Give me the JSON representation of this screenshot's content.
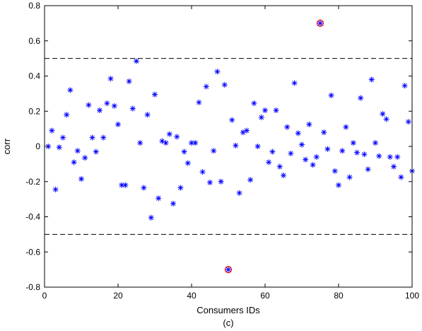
{
  "chart_data": {
    "type": "scatter",
    "title": "",
    "xlabel": "Consumers IDs",
    "ylabel": "corr",
    "caption": "(c)",
    "xlim": [
      0,
      100
    ],
    "ylim": [
      -0.8,
      0.8
    ],
    "xticks": [
      0,
      20,
      40,
      60,
      80,
      100
    ],
    "yticks": [
      -0.8,
      -0.6,
      -0.4,
      -0.2,
      0,
      0.2,
      0.4,
      0.6,
      0.8
    ],
    "threshold_lines": [
      0.5,
      -0.5
    ],
    "marker": "asterisk",
    "marker_color": "#0000ff",
    "highlight_color": "#ff0000",
    "grid": false,
    "highlighted": [
      {
        "x": 50,
        "y": -0.7
      },
      {
        "x": 75,
        "y": 0.7
      }
    ],
    "points": [
      {
        "x": 1,
        "y": 0.0
      },
      {
        "x": 2,
        "y": 0.09
      },
      {
        "x": 3,
        "y": -0.245
      },
      {
        "x": 4,
        "y": -0.005
      },
      {
        "x": 5,
        "y": 0.05
      },
      {
        "x": 6,
        "y": 0.18
      },
      {
        "x": 7,
        "y": 0.32
      },
      {
        "x": 8,
        "y": -0.09
      },
      {
        "x": 9,
        "y": -0.025
      },
      {
        "x": 10,
        "y": -0.185
      },
      {
        "x": 11,
        "y": -0.065
      },
      {
        "x": 12,
        "y": 0.235
      },
      {
        "x": 13,
        "y": 0.05
      },
      {
        "x": 14,
        "y": -0.03
      },
      {
        "x": 15,
        "y": 0.205
      },
      {
        "x": 16,
        "y": 0.05
      },
      {
        "x": 17,
        "y": 0.245
      },
      {
        "x": 18,
        "y": 0.385
      },
      {
        "x": 19,
        "y": 0.23
      },
      {
        "x": 20,
        "y": 0.125
      },
      {
        "x": 21,
        "y": -0.22
      },
      {
        "x": 22,
        "y": -0.22
      },
      {
        "x": 23,
        "y": 0.37
      },
      {
        "x": 24,
        "y": 0.215
      },
      {
        "x": 25,
        "y": 0.485
      },
      {
        "x": 26,
        "y": 0.02
      },
      {
        "x": 27,
        "y": -0.235
      },
      {
        "x": 28,
        "y": 0.18
      },
      {
        "x": 29,
        "y": -0.405
      },
      {
        "x": 30,
        "y": 0.295
      },
      {
        "x": 31,
        "y": -0.295
      },
      {
        "x": 32,
        "y": 0.03
      },
      {
        "x": 33,
        "y": 0.02
      },
      {
        "x": 34,
        "y": 0.07
      },
      {
        "x": 35,
        "y": -0.325
      },
      {
        "x": 36,
        "y": 0.055
      },
      {
        "x": 37,
        "y": -0.235
      },
      {
        "x": 38,
        "y": -0.03
      },
      {
        "x": 39,
        "y": -0.095
      },
      {
        "x": 40,
        "y": 0.02
      },
      {
        "x": 41,
        "y": 0.02
      },
      {
        "x": 42,
        "y": 0.25
      },
      {
        "x": 43,
        "y": -0.145
      },
      {
        "x": 44,
        "y": 0.34
      },
      {
        "x": 45,
        "y": -0.205
      },
      {
        "x": 46,
        "y": -0.025
      },
      {
        "x": 47,
        "y": 0.425
      },
      {
        "x": 48,
        "y": -0.2
      },
      {
        "x": 49,
        "y": 0.35
      },
      {
        "x": 51,
        "y": 0.15
      },
      {
        "x": 52,
        "y": 0.005
      },
      {
        "x": 53,
        "y": -0.265
      },
      {
        "x": 54,
        "y": 0.08
      },
      {
        "x": 55,
        "y": 0.09
      },
      {
        "x": 56,
        "y": -0.19
      },
      {
        "x": 57,
        "y": 0.245
      },
      {
        "x": 58,
        "y": 0.0
      },
      {
        "x": 59,
        "y": 0.165
      },
      {
        "x": 60,
        "y": 0.205
      },
      {
        "x": 61,
        "y": -0.09
      },
      {
        "x": 62,
        "y": -0.03
      },
      {
        "x": 63,
        "y": 0.205
      },
      {
        "x": 64,
        "y": -0.115
      },
      {
        "x": 65,
        "y": -0.165
      },
      {
        "x": 66,
        "y": 0.11
      },
      {
        "x": 67,
        "y": -0.04
      },
      {
        "x": 68,
        "y": 0.36
      },
      {
        "x": 69,
        "y": 0.075
      },
      {
        "x": 70,
        "y": 0.01
      },
      {
        "x": 71,
        "y": -0.075
      },
      {
        "x": 72,
        "y": 0.125
      },
      {
        "x": 73,
        "y": -0.105
      },
      {
        "x": 74,
        "y": -0.06
      },
      {
        "x": 76,
        "y": 0.08
      },
      {
        "x": 77,
        "y": -0.015
      },
      {
        "x": 78,
        "y": 0.29
      },
      {
        "x": 79,
        "y": -0.14
      },
      {
        "x": 80,
        "y": -0.22
      },
      {
        "x": 81,
        "y": -0.025
      },
      {
        "x": 82,
        "y": 0.11
      },
      {
        "x": 83,
        "y": -0.175
      },
      {
        "x": 84,
        "y": 0.02
      },
      {
        "x": 85,
        "y": -0.035
      },
      {
        "x": 86,
        "y": 0.275
      },
      {
        "x": 87,
        "y": -0.045
      },
      {
        "x": 88,
        "y": -0.13
      },
      {
        "x": 89,
        "y": 0.38
      },
      {
        "x": 90,
        "y": 0.02
      },
      {
        "x": 91,
        "y": -0.055
      },
      {
        "x": 92,
        "y": 0.185
      },
      {
        "x": 93,
        "y": 0.155
      },
      {
        "x": 94,
        "y": -0.06
      },
      {
        "x": 95,
        "y": -0.115
      },
      {
        "x": 96,
        "y": -0.06
      },
      {
        "x": 97,
        "y": -0.175
      },
      {
        "x": 98,
        "y": 0.345
      },
      {
        "x": 99,
        "y": 0.14
      },
      {
        "x": 100,
        "y": -0.14
      }
    ]
  }
}
